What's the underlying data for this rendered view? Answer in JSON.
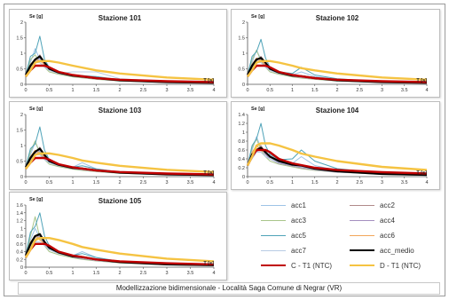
{
  "caption": "Modellizzazione bidimensionale - Località Saga Comune di Negrar (VR)",
  "legend": [
    {
      "name": "acc1",
      "color": "#9dc3e6",
      "width": 1
    },
    {
      "name": "acc2",
      "color": "#b08a8a",
      "width": 1
    },
    {
      "name": "acc3",
      "color": "#a9c58a",
      "width": 1
    },
    {
      "name": "acc4",
      "color": "#a58fc0",
      "width": 1
    },
    {
      "name": "acc5",
      "color": "#4fa3b8",
      "width": 1
    },
    {
      "name": "acc6",
      "color": "#f2a65a",
      "width": 1
    },
    {
      "name": "acc7",
      "color": "#b8cce4",
      "width": 1
    },
    {
      "name": "acc_medio",
      "color": "#000000",
      "width": 2.2
    },
    {
      "name": "C - T1 (NTC)",
      "color": "#c00000",
      "width": 2.4
    },
    {
      "name": "D - T1 (NTC)",
      "color": "#f5c342",
      "width": 2.4
    }
  ],
  "chart_data": [
    {
      "type": "line",
      "title": "Stazione 101",
      "ylabel": "Se [g]",
      "xlabel": "T [s]",
      "xlim": [
        0,
        4
      ],
      "ylim": [
        0,
        2
      ],
      "xticks": [
        "0",
        "0.5",
        "1",
        "1.5",
        "2",
        "2.5",
        "3",
        "3.5",
        "4"
      ],
      "yticks": [
        "0",
        "0.5",
        "1",
        "1.5",
        "2"
      ],
      "x": [
        0,
        0.1,
        0.2,
        0.3,
        0.4,
        0.5,
        0.7,
        1.0,
        1.5,
        2.0,
        3.0,
        4.0
      ],
      "series": [
        {
          "name": "acc1",
          "values": [
            0.3,
            0.7,
            1.15,
            0.8,
            0.6,
            0.45,
            0.35,
            0.28,
            0.18,
            0.12,
            0.07,
            0.05
          ]
        },
        {
          "name": "acc2",
          "values": [
            0.3,
            0.55,
            0.75,
            0.95,
            0.7,
            0.55,
            0.4,
            0.3,
            0.2,
            0.14,
            0.08,
            0.05
          ]
        },
        {
          "name": "acc3",
          "values": [
            0.3,
            0.8,
            0.95,
            0.7,
            0.55,
            0.4,
            0.32,
            0.24,
            0.16,
            0.11,
            0.06,
            0.04
          ]
        },
        {
          "name": "acc4",
          "values": [
            0.3,
            0.6,
            0.7,
            0.85,
            0.6,
            0.45,
            0.35,
            0.26,
            0.17,
            0.12,
            0.07,
            0.05
          ]
        },
        {
          "name": "acc5",
          "values": [
            0.3,
            0.9,
            1.0,
            1.55,
            0.8,
            0.55,
            0.4,
            0.3,
            0.25,
            0.15,
            0.08,
            0.05
          ]
        },
        {
          "name": "acc6",
          "values": [
            0.3,
            0.65,
            0.8,
            0.75,
            0.65,
            0.5,
            0.38,
            0.28,
            0.18,
            0.12,
            0.07,
            0.05
          ]
        },
        {
          "name": "acc7",
          "values": [
            0.3,
            0.5,
            0.7,
            0.7,
            0.55,
            0.45,
            0.35,
            0.4,
            0.4,
            0.18,
            0.09,
            0.06
          ]
        },
        {
          "name": "acc_medio",
          "values": [
            0.3,
            0.6,
            0.8,
            0.9,
            0.7,
            0.5,
            0.38,
            0.28,
            0.2,
            0.13,
            0.07,
            0.05
          ]
        },
        {
          "name": "C - T1 (NTC)",
          "values": [
            0.25,
            0.45,
            0.6,
            0.6,
            0.6,
            0.55,
            0.4,
            0.3,
            0.2,
            0.15,
            0.1,
            0.07
          ]
        },
        {
          "name": "D - T1 (NTC)",
          "values": [
            0.25,
            0.45,
            0.7,
            0.75,
            0.75,
            0.75,
            0.7,
            0.6,
            0.45,
            0.35,
            0.22,
            0.15
          ]
        }
      ]
    },
    {
      "type": "line",
      "title": "Stazione 102",
      "ylabel": "Se [g]",
      "xlabel": "T [s]",
      "xlim": [
        0,
        4
      ],
      "ylim": [
        0,
        2
      ],
      "xticks": [
        "0",
        "0.5",
        "1",
        "1.5",
        "2",
        "2.5",
        "3",
        "3.5",
        "4"
      ],
      "yticks": [
        "0",
        "0.5",
        "1",
        "1.5",
        "2"
      ],
      "x": [
        0,
        0.1,
        0.2,
        0.3,
        0.4,
        0.5,
        0.7,
        1.0,
        1.2,
        1.5,
        2.0,
        3.0,
        4.0
      ],
      "series": [
        {
          "name": "acc1",
          "values": [
            0.3,
            0.7,
            1.1,
            0.8,
            0.6,
            0.45,
            0.35,
            0.3,
            0.4,
            0.25,
            0.15,
            0.08,
            0.05
          ]
        },
        {
          "name": "acc2",
          "values": [
            0.3,
            0.55,
            0.75,
            0.9,
            0.7,
            0.55,
            0.4,
            0.3,
            0.26,
            0.2,
            0.14,
            0.08,
            0.05
          ]
        },
        {
          "name": "acc3",
          "values": [
            0.3,
            0.8,
            1.1,
            0.75,
            0.55,
            0.4,
            0.32,
            0.24,
            0.2,
            0.16,
            0.11,
            0.06,
            0.04
          ]
        },
        {
          "name": "acc4",
          "values": [
            0.3,
            0.6,
            0.7,
            0.8,
            0.6,
            0.45,
            0.35,
            0.26,
            0.22,
            0.17,
            0.12,
            0.07,
            0.05
          ]
        },
        {
          "name": "acc5",
          "values": [
            0.3,
            0.9,
            1.05,
            1.45,
            0.85,
            0.55,
            0.4,
            0.35,
            0.55,
            0.3,
            0.18,
            0.08,
            0.05
          ]
        },
        {
          "name": "acc6",
          "values": [
            0.3,
            0.65,
            0.85,
            0.75,
            0.65,
            0.5,
            0.38,
            0.28,
            0.24,
            0.18,
            0.12,
            0.07,
            0.05
          ]
        },
        {
          "name": "acc7",
          "values": [
            0.3,
            0.5,
            0.7,
            0.7,
            0.55,
            0.45,
            0.35,
            0.28,
            0.24,
            0.18,
            0.12,
            0.07,
            0.05
          ]
        },
        {
          "name": "acc_medio",
          "values": [
            0.3,
            0.6,
            0.8,
            0.85,
            0.7,
            0.5,
            0.38,
            0.28,
            0.26,
            0.2,
            0.13,
            0.07,
            0.05
          ]
        },
        {
          "name": "C - T1 (NTC)",
          "values": [
            0.25,
            0.45,
            0.6,
            0.6,
            0.6,
            0.55,
            0.4,
            0.3,
            0.26,
            0.2,
            0.15,
            0.1,
            0.07
          ]
        },
        {
          "name": "D - T1 (NTC)",
          "values": [
            0.25,
            0.45,
            0.7,
            0.75,
            0.75,
            0.75,
            0.7,
            0.6,
            0.52,
            0.45,
            0.35,
            0.22,
            0.15
          ]
        }
      ]
    },
    {
      "type": "line",
      "title": "Stazione 103",
      "ylabel": "Se [g]",
      "xlabel": "T [s]",
      "xlim": [
        0,
        4
      ],
      "ylim": [
        0,
        2
      ],
      "xticks": [
        "0",
        "0.5",
        "1",
        "1.5",
        "2",
        "2.5",
        "3",
        "3.5",
        "4"
      ],
      "yticks": [
        "0",
        "0.5",
        "1",
        "1.5",
        "2"
      ],
      "x": [
        0,
        0.1,
        0.2,
        0.3,
        0.4,
        0.5,
        0.7,
        1.0,
        1.2,
        1.5,
        2.0,
        3.0,
        4.0
      ],
      "series": [
        {
          "name": "acc1",
          "values": [
            0.3,
            0.7,
            1.1,
            0.8,
            0.6,
            0.45,
            0.35,
            0.3,
            0.45,
            0.25,
            0.15,
            0.08,
            0.05
          ]
        },
        {
          "name": "acc2",
          "values": [
            0.3,
            0.55,
            0.75,
            0.95,
            0.7,
            0.55,
            0.4,
            0.3,
            0.26,
            0.2,
            0.14,
            0.08,
            0.05
          ]
        },
        {
          "name": "acc3",
          "values": [
            0.3,
            0.8,
            1.15,
            0.75,
            0.55,
            0.4,
            0.32,
            0.24,
            0.2,
            0.16,
            0.11,
            0.06,
            0.04
          ]
        },
        {
          "name": "acc4",
          "values": [
            0.3,
            0.6,
            0.7,
            0.85,
            0.6,
            0.45,
            0.35,
            0.26,
            0.22,
            0.17,
            0.12,
            0.07,
            0.05
          ]
        },
        {
          "name": "acc5",
          "values": [
            0.3,
            0.9,
            1.05,
            1.6,
            0.85,
            0.55,
            0.4,
            0.3,
            0.35,
            0.25,
            0.15,
            0.08,
            0.05
          ]
        },
        {
          "name": "acc6",
          "values": [
            0.3,
            0.65,
            0.85,
            0.75,
            0.65,
            0.5,
            0.38,
            0.28,
            0.24,
            0.18,
            0.12,
            0.07,
            0.05
          ]
        },
        {
          "name": "acc7",
          "values": [
            0.3,
            0.5,
            0.7,
            0.7,
            0.55,
            0.45,
            0.35,
            0.28,
            0.24,
            0.18,
            0.12,
            0.07,
            0.05
          ]
        },
        {
          "name": "acc_medio",
          "values": [
            0.3,
            0.6,
            0.8,
            0.9,
            0.7,
            0.5,
            0.38,
            0.28,
            0.26,
            0.2,
            0.13,
            0.07,
            0.05
          ]
        },
        {
          "name": "C - T1 (NTC)",
          "values": [
            0.25,
            0.45,
            0.6,
            0.6,
            0.6,
            0.55,
            0.4,
            0.3,
            0.26,
            0.2,
            0.15,
            0.1,
            0.07
          ]
        },
        {
          "name": "D - T1 (NTC)",
          "values": [
            0.25,
            0.45,
            0.7,
            0.75,
            0.75,
            0.75,
            0.7,
            0.6,
            0.52,
            0.45,
            0.35,
            0.22,
            0.15
          ]
        }
      ]
    },
    {
      "type": "line",
      "title": "Stazione 104",
      "ylabel": "Se [g]",
      "xlabel": "T [s]",
      "xlim": [
        0,
        4
      ],
      "ylim": [
        0,
        1.4
      ],
      "xticks": [
        "0",
        "0.5",
        "1",
        "1.5",
        "2",
        "2.5",
        "3",
        "3.5",
        "4"
      ],
      "yticks": [
        "0",
        "0.2",
        "0.4",
        "0.6",
        "0.8",
        "1",
        "1.2",
        "1.4"
      ],
      "x": [
        0,
        0.1,
        0.2,
        0.3,
        0.4,
        0.5,
        0.7,
        1.0,
        1.2,
        1.5,
        2.0,
        3.0,
        4.0
      ],
      "series": [
        {
          "name": "acc1",
          "values": [
            0.25,
            0.6,
            0.9,
            0.65,
            0.5,
            0.4,
            0.32,
            0.3,
            0.45,
            0.25,
            0.14,
            0.07,
            0.04
          ]
        },
        {
          "name": "acc2",
          "values": [
            0.25,
            0.45,
            0.6,
            0.7,
            0.55,
            0.45,
            0.35,
            0.28,
            0.24,
            0.18,
            0.12,
            0.07,
            0.04
          ]
        },
        {
          "name": "acc3",
          "values": [
            0.25,
            0.65,
            0.85,
            0.6,
            0.45,
            0.35,
            0.28,
            0.22,
            0.18,
            0.14,
            0.1,
            0.05,
            0.03
          ]
        },
        {
          "name": "acc4",
          "values": [
            0.25,
            0.5,
            0.55,
            0.65,
            0.5,
            0.4,
            0.3,
            0.24,
            0.2,
            0.15,
            0.1,
            0.06,
            0.04
          ]
        },
        {
          "name": "acc5",
          "values": [
            0.25,
            0.7,
            0.85,
            1.2,
            0.7,
            0.5,
            0.38,
            0.4,
            0.6,
            0.35,
            0.18,
            0.08,
            0.05
          ]
        },
        {
          "name": "acc6",
          "values": [
            0.25,
            0.55,
            0.7,
            0.6,
            0.55,
            0.45,
            0.35,
            0.26,
            0.22,
            0.16,
            0.11,
            0.06,
            0.04
          ]
        },
        {
          "name": "acc7",
          "values": [
            0.25,
            0.4,
            0.55,
            0.55,
            0.45,
            0.4,
            0.32,
            0.26,
            0.22,
            0.16,
            0.11,
            0.06,
            0.04
          ]
        },
        {
          "name": "acc_medio",
          "values": [
            0.25,
            0.5,
            0.6,
            0.65,
            0.55,
            0.45,
            0.35,
            0.27,
            0.25,
            0.18,
            0.12,
            0.06,
            0.04
          ]
        },
        {
          "name": "C - T1 (NTC)",
          "values": [
            0.25,
            0.45,
            0.6,
            0.6,
            0.6,
            0.55,
            0.4,
            0.3,
            0.26,
            0.2,
            0.15,
            0.1,
            0.07
          ]
        },
        {
          "name": "D - T1 (NTC)",
          "values": [
            0.25,
            0.45,
            0.7,
            0.75,
            0.75,
            0.75,
            0.7,
            0.6,
            0.52,
            0.45,
            0.35,
            0.22,
            0.15
          ]
        }
      ]
    },
    {
      "type": "line",
      "title": "Stazione 105",
      "ylabel": "Se [g]",
      "xlabel": "T [s]",
      "xlim": [
        0,
        4
      ],
      "ylim": [
        0,
        1.6
      ],
      "xticks": [
        "0",
        "0.5",
        "1",
        "1.5",
        "2",
        "2.5",
        "3",
        "3.5",
        "4"
      ],
      "yticks": [
        "0",
        "0.2",
        "0.4",
        "0.6",
        "0.8",
        "1",
        "1.2",
        "1.4",
        "1.6"
      ],
      "x": [
        0,
        0.1,
        0.2,
        0.3,
        0.4,
        0.5,
        0.7,
        1.0,
        1.2,
        1.5,
        2.0,
        3.0,
        4.0
      ],
      "series": [
        {
          "name": "acc1",
          "values": [
            0.3,
            0.7,
            1.0,
            0.75,
            0.55,
            0.45,
            0.35,
            0.3,
            0.4,
            0.25,
            0.14,
            0.08,
            0.05
          ]
        },
        {
          "name": "acc2",
          "values": [
            0.3,
            0.55,
            0.7,
            0.85,
            0.65,
            0.5,
            0.4,
            0.3,
            0.26,
            0.2,
            0.14,
            0.08,
            0.05
          ]
        },
        {
          "name": "acc3",
          "values": [
            0.3,
            0.8,
            1.3,
            0.75,
            0.55,
            0.4,
            0.32,
            0.24,
            0.2,
            0.16,
            0.11,
            0.06,
            0.04
          ]
        },
        {
          "name": "acc4",
          "values": [
            0.3,
            0.6,
            0.65,
            0.8,
            0.6,
            0.45,
            0.35,
            0.26,
            0.22,
            0.17,
            0.12,
            0.07,
            0.05
          ]
        },
        {
          "name": "acc5",
          "values": [
            0.3,
            0.9,
            1.05,
            1.4,
            0.8,
            0.55,
            0.4,
            0.3,
            0.35,
            0.25,
            0.15,
            0.08,
            0.05
          ]
        },
        {
          "name": "acc6",
          "values": [
            0.3,
            0.65,
            0.8,
            0.7,
            0.6,
            0.5,
            0.38,
            0.28,
            0.24,
            0.18,
            0.12,
            0.07,
            0.05
          ]
        },
        {
          "name": "acc7",
          "values": [
            0.3,
            0.5,
            0.65,
            0.65,
            0.55,
            0.45,
            0.35,
            0.28,
            0.24,
            0.18,
            0.12,
            0.07,
            0.05
          ]
        },
        {
          "name": "acc_medio",
          "values": [
            0.3,
            0.6,
            0.8,
            0.85,
            0.65,
            0.5,
            0.38,
            0.28,
            0.26,
            0.2,
            0.13,
            0.07,
            0.05
          ]
        },
        {
          "name": "C - T1 (NTC)",
          "values": [
            0.25,
            0.45,
            0.6,
            0.6,
            0.6,
            0.55,
            0.4,
            0.3,
            0.26,
            0.2,
            0.15,
            0.1,
            0.07
          ]
        },
        {
          "name": "D - T1 (NTC)",
          "values": [
            0.25,
            0.45,
            0.7,
            0.75,
            0.75,
            0.75,
            0.7,
            0.6,
            0.52,
            0.45,
            0.35,
            0.22,
            0.15
          ]
        }
      ]
    }
  ]
}
